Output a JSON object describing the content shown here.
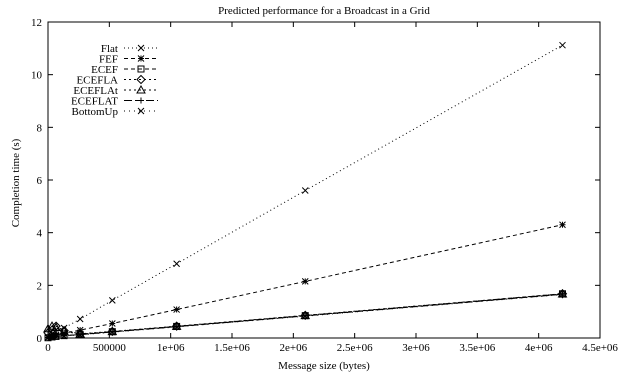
{
  "chart_data": {
    "type": "line",
    "title": "Predicted performance for a Broadcast in a Grid",
    "xlabel": "Message size (bytes)",
    "ylabel": "Completion time (s)",
    "xlim": [
      0,
      4500000
    ],
    "ylim": [
      0,
      12
    ],
    "x_ticks": [
      {
        "value": 0,
        "label": "0"
      },
      {
        "value": 500000,
        "label": "500000"
      },
      {
        "value": 1000000,
        "label": "1e+06"
      },
      {
        "value": 1500000,
        "label": "1.5e+06"
      },
      {
        "value": 2000000,
        "label": "2e+06"
      },
      {
        "value": 2500000,
        "label": "2.5e+06"
      },
      {
        "value": 3000000,
        "label": "3e+06"
      },
      {
        "value": 3500000,
        "label": "3.5e+06"
      },
      {
        "value": 4000000,
        "label": "4e+06"
      },
      {
        "value": 4500000,
        "label": "4.5e+06"
      }
    ],
    "y_ticks": [
      {
        "value": 0,
        "label": "0"
      },
      {
        "value": 2,
        "label": "2"
      },
      {
        "value": 4,
        "label": "4"
      },
      {
        "value": 6,
        "label": "6"
      },
      {
        "value": 8,
        "label": "8"
      },
      {
        "value": 10,
        "label": "10"
      },
      {
        "value": 12,
        "label": "12"
      }
    ],
    "legend_position": "top-left",
    "grid": false,
    "x": [
      0,
      32768,
      65536,
      131072,
      262144,
      524288,
      1048576,
      2097152,
      4194304
    ],
    "series": [
      {
        "name": "Flat",
        "marker": "x",
        "dash": "1,3",
        "values": [
          0.03,
          0.15,
          0.22,
          0.38,
          0.72,
          1.43,
          2.82,
          5.6,
          11.12
        ]
      },
      {
        "name": "FEF",
        "marker": "star",
        "dash": "4,3",
        "values": [
          0.02,
          0.08,
          0.12,
          0.18,
          0.3,
          0.55,
          1.08,
          2.15,
          4.3
        ]
      },
      {
        "name": "ECEF",
        "marker": "square",
        "dash": "4,3",
        "values": [
          0.01,
          0.04,
          0.06,
          0.09,
          0.13,
          0.24,
          0.44,
          0.85,
          1.68
        ]
      },
      {
        "name": "ECEFLA",
        "marker": "diamond",
        "dash": "2,3",
        "values": [
          0.2,
          0.3,
          0.45,
          0.28,
          0.16,
          0.25,
          0.45,
          0.86,
          1.68
        ]
      },
      {
        "name": "ECEFLAt",
        "marker": "triangle",
        "dash": "2,3",
        "values": [
          0.35,
          0.45,
          0.4,
          0.25,
          0.15,
          0.24,
          0.44,
          0.85,
          1.67
        ]
      },
      {
        "name": "ECEFLAT",
        "marker": "plus",
        "dash": "8,3",
        "values": [
          0.01,
          0.04,
          0.06,
          0.09,
          0.13,
          0.23,
          0.43,
          0.84,
          1.66
        ]
      },
      {
        "name": "BottomUp",
        "marker": "x",
        "dash": "1,4",
        "values": [
          0.01,
          0.03,
          0.05,
          0.08,
          0.12,
          0.22,
          0.42,
          0.83,
          1.65
        ]
      }
    ]
  }
}
